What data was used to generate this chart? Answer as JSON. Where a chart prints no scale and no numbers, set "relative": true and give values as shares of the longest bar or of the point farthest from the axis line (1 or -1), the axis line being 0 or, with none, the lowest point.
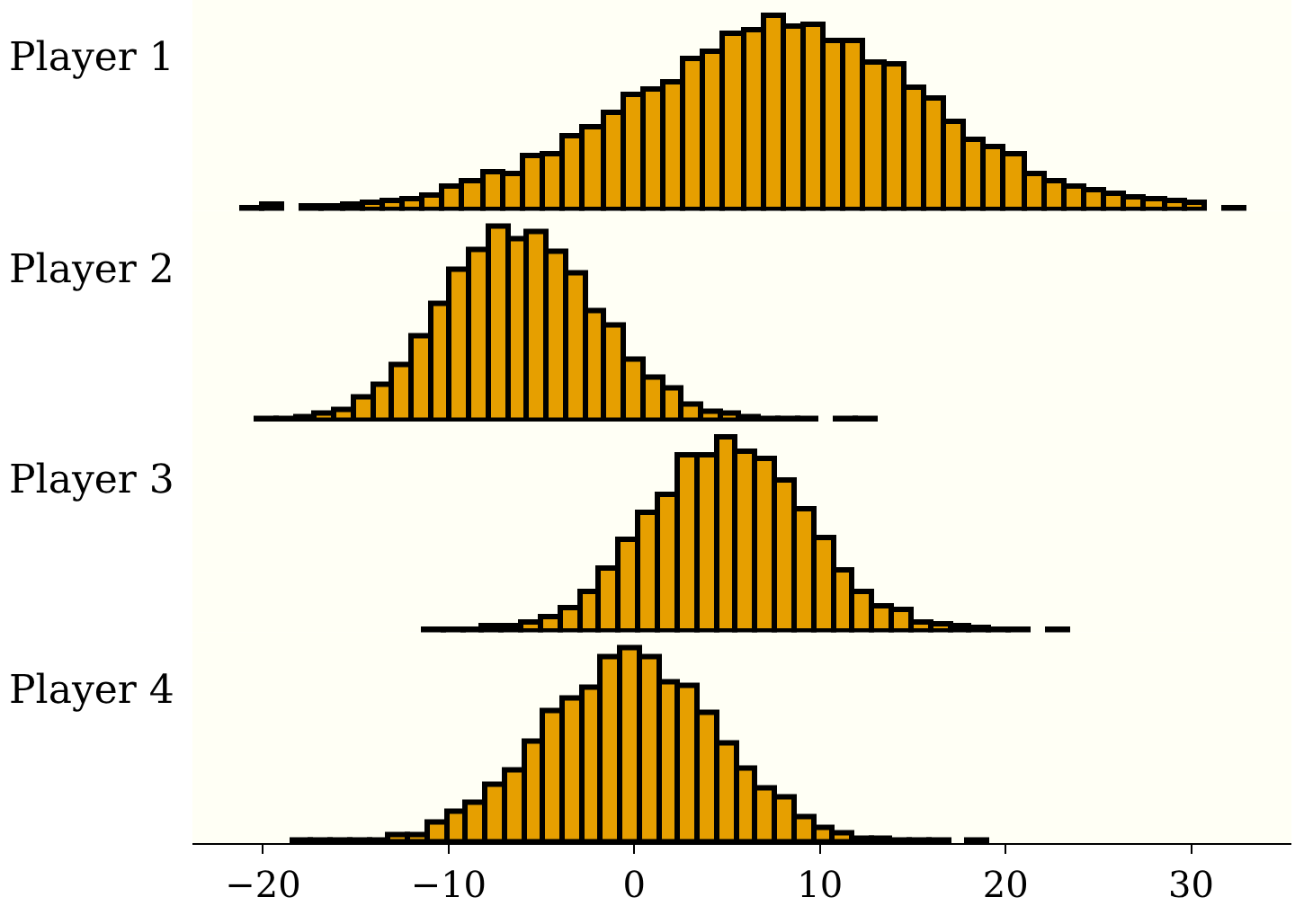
{
  "chart_data": [
    {
      "type": "bar",
      "ylabel": "Player 1",
      "relative": true,
      "color": "#e69f00",
      "xlim": [
        -23.8,
        35.4
      ],
      "xticks": [
        -20,
        -10,
        0,
        10,
        20,
        30
      ],
      "tick_labels": false,
      "x": [
        -20.56,
        -19.48,
        -18.4,
        -17.32,
        -16.24,
        -15.16,
        -14.08,
        -13,
        -11.92,
        -10.84,
        -9.76,
        -8.68,
        -7.6,
        -6.52,
        -5.44,
        -4.36,
        -3.28,
        -2.2,
        -1.12,
        -0.04,
        1.04,
        2.12,
        3.2,
        4.28,
        5.36,
        6.44,
        7.52,
        8.6,
        9.68,
        10.76,
        11.84,
        12.92,
        14,
        15.08,
        16.16,
        17.24,
        18.32,
        19.4,
        20.48,
        21.56,
        22.64,
        23.72,
        24.8,
        25.88,
        26.96,
        28.04,
        29.12,
        30.2,
        31.28,
        32.36
      ],
      "values": [
        0.01,
        0.03,
        null,
        0.02,
        0.02,
        0.03,
        0.04,
        0.05,
        0.06,
        0.08,
        0.12,
        0.15,
        0.2,
        0.19,
        0.28,
        0.29,
        0.38,
        0.43,
        0.5,
        0.59,
        0.62,
        0.66,
        0.78,
        0.82,
        0.91,
        0.93,
        1.0,
        0.95,
        0.96,
        0.87,
        0.87,
        0.76,
        0.75,
        0.63,
        0.58,
        0.46,
        0.36,
        0.33,
        0.29,
        0.19,
        0.15,
        0.12,
        0.1,
        0.09,
        0.07,
        0.06,
        0.05,
        0.04,
        null,
        0.01
      ]
    },
    {
      "type": "bar",
      "ylabel": "Player 2",
      "relative": true,
      "color": "#e69f00",
      "xlim": [
        -23.8,
        35.4
      ],
      "xticks": [
        -20,
        -10,
        0,
        10,
        20,
        30
      ],
      "tick_labels": false,
      "x": [
        -19.78,
        -18.74,
        -17.7,
        -16.66,
        -15.62,
        -14.58,
        -13.54,
        -12.5,
        -11.46,
        -10.42,
        -9.38,
        -8.34,
        -7.3,
        -6.26,
        -5.22,
        -4.18,
        -3.14,
        -2.1,
        -1.06,
        -0.02,
        1.02,
        2.06,
        3.1,
        4.14,
        5.18,
        6.22,
        7.26,
        8.3,
        9.34,
        10.38,
        11.42,
        12.46
      ],
      "values": [
        0.01,
        0.01,
        0.02,
        0.04,
        0.06,
        0.12,
        0.19,
        0.29,
        0.44,
        0.6,
        0.78,
        0.88,
        1.0,
        0.94,
        0.97,
        0.87,
        0.76,
        0.57,
        0.49,
        0.32,
        0.22,
        0.17,
        0.09,
        0.05,
        0.04,
        0.02,
        0.01,
        0.01,
        0.01,
        null,
        0.01,
        0.01
      ]
    },
    {
      "type": "bar",
      "ylabel": "Player 3",
      "relative": true,
      "color": "#e69f00",
      "xlim": [
        -23.8,
        35.4
      ],
      "xticks": [
        -20,
        -10,
        0,
        10,
        20,
        30
      ],
      "tick_labels": false,
      "x": [
        -10.78,
        -9.73,
        -8.68,
        -7.63,
        -6.58,
        -5.53,
        -4.48,
        -3.43,
        -2.38,
        -1.33,
        -0.28,
        0.77,
        1.82,
        2.87,
        3.92,
        4.97,
        6.02,
        7.07,
        8.12,
        9.17,
        10.22,
        11.27,
        12.32,
        13.37,
        14.42,
        15.47,
        16.52,
        17.57,
        18.62,
        19.67,
        20.72,
        21.77,
        22.82
      ],
      "values": [
        0.01,
        0.01,
        0.01,
        0.03,
        0.03,
        0.05,
        0.08,
        0.12,
        0.21,
        0.33,
        0.47,
        0.61,
        0.71,
        0.91,
        0.91,
        1.0,
        0.93,
        0.89,
        0.78,
        0.63,
        0.48,
        0.32,
        0.21,
        0.13,
        0.11,
        0.05,
        0.04,
        0.03,
        0.02,
        0.01,
        0.01,
        null,
        0.01
      ]
    },
    {
      "type": "bar",
      "ylabel": "Player 4",
      "relative": true,
      "color": "#e69f00",
      "xlim": [
        -23.8,
        35.4
      ],
      "xticks": [
        -20,
        -10,
        0,
        10,
        20,
        30
      ],
      "x": [
        -17.88,
        -16.84,
        -15.8,
        -14.76,
        -13.72,
        -12.68,
        -11.64,
        -10.6,
        -9.56,
        -8.52,
        -7.48,
        -6.44,
        -5.4,
        -4.36,
        -3.32,
        -2.28,
        -1.24,
        -0.2,
        0.84,
        1.88,
        2.92,
        3.96,
        5,
        6.04,
        7.08,
        8.12,
        9.16,
        10.2,
        11.24,
        12.28,
        13.32,
        14.36,
        15.4,
        16.44,
        17.48,
        18.52
      ],
      "values": [
        0.01,
        0.01,
        0.01,
        0.01,
        0.01,
        0.04,
        0.04,
        0.1,
        0.16,
        0.21,
        0.3,
        0.37,
        0.52,
        0.68,
        0.74,
        0.8,
        0.96,
        1.0,
        0.96,
        0.83,
        0.81,
        0.67,
        0.51,
        0.38,
        0.28,
        0.23,
        0.13,
        0.08,
        0.05,
        0.02,
        0.02,
        0.01,
        0.01,
        0.01,
        null,
        0.01
      ]
    }
  ]
}
